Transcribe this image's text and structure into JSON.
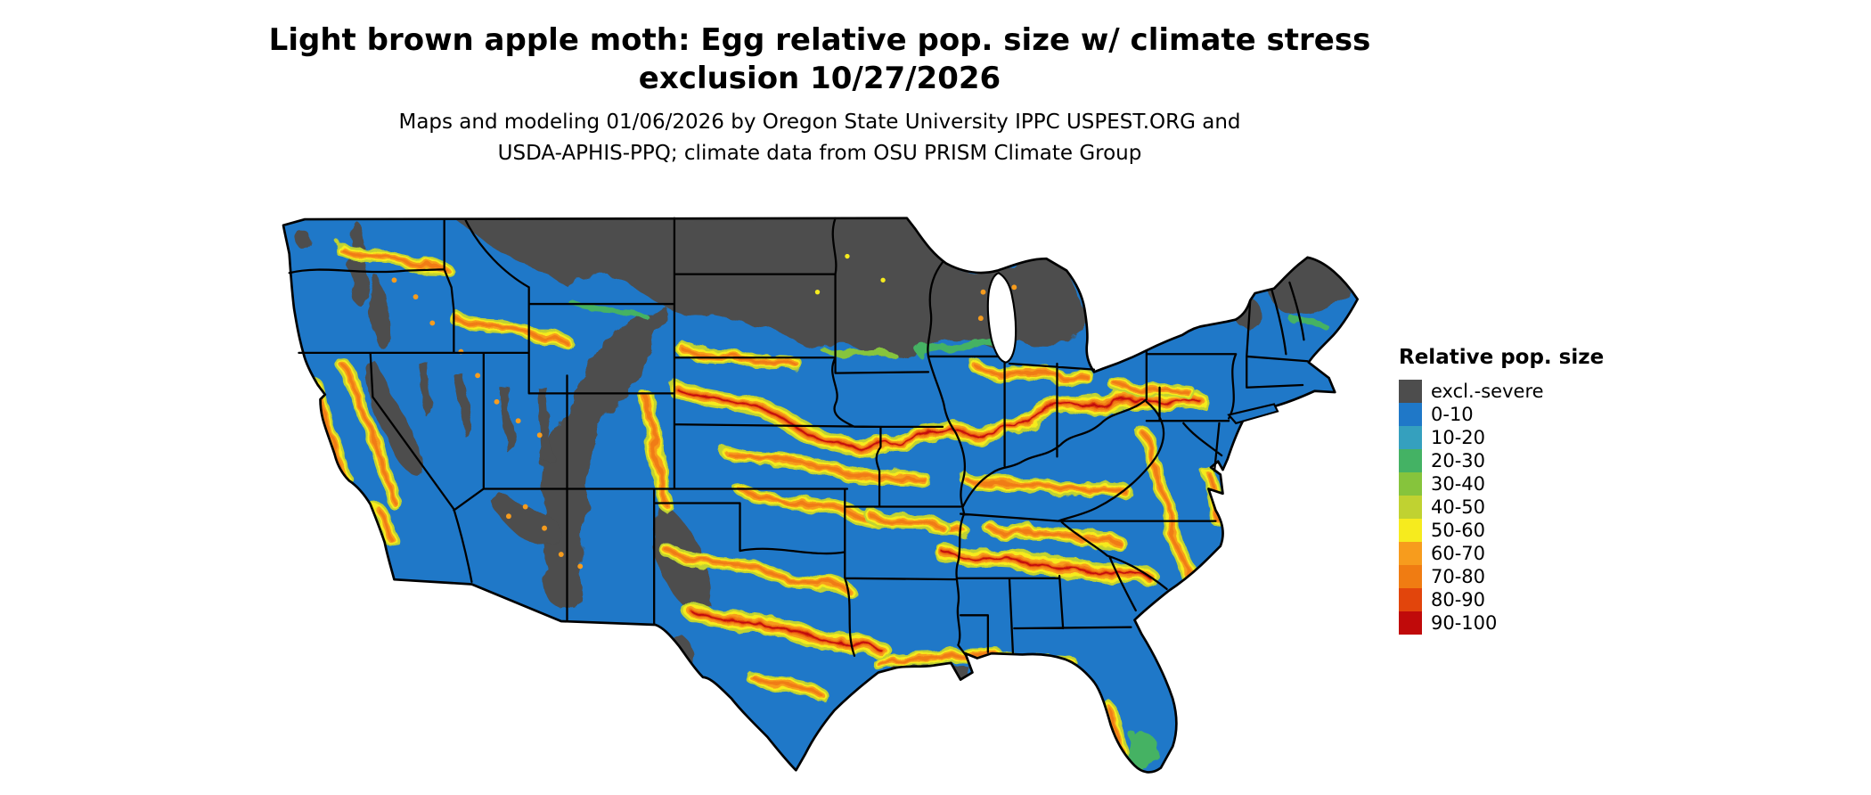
{
  "header": {
    "title": [
      "Light brown apple moth: Egg relative pop. size w/ climate stress",
      "exclusion 10/27/2026"
    ],
    "subtitle": [
      "Maps and modeling 01/06/2026 by Oregon State University IPPC USPEST.ORG and",
      "USDA-APHIS-PPQ; climate data from OSU PRISM Climate Group"
    ]
  },
  "legend": {
    "title": "Relative pop. size",
    "items": [
      {
        "label": "excl.-severe",
        "color": "#4D4D4D"
      },
      {
        "label": "0-10",
        "color": "#1F78C8"
      },
      {
        "label": "10-20",
        "color": "#35A0BE"
      },
      {
        "label": "20-30",
        "color": "#44B264"
      },
      {
        "label": "30-40",
        "color": "#86C43C"
      },
      {
        "label": "40-50",
        "color": "#C0D231"
      },
      {
        "label": "50-60",
        "color": "#F6EB1E"
      },
      {
        "label": "60-70",
        "color": "#F79C1D"
      },
      {
        "label": "70-80",
        "color": "#F07C12"
      },
      {
        "label": "80-90",
        "color": "#E2450C"
      },
      {
        "label": "90-100",
        "color": "#C00A0A"
      }
    ]
  },
  "map": {
    "region": "Contiguous United States",
    "base_value_class": "0-10",
    "exclusion_class": "excl.-severe"
  }
}
